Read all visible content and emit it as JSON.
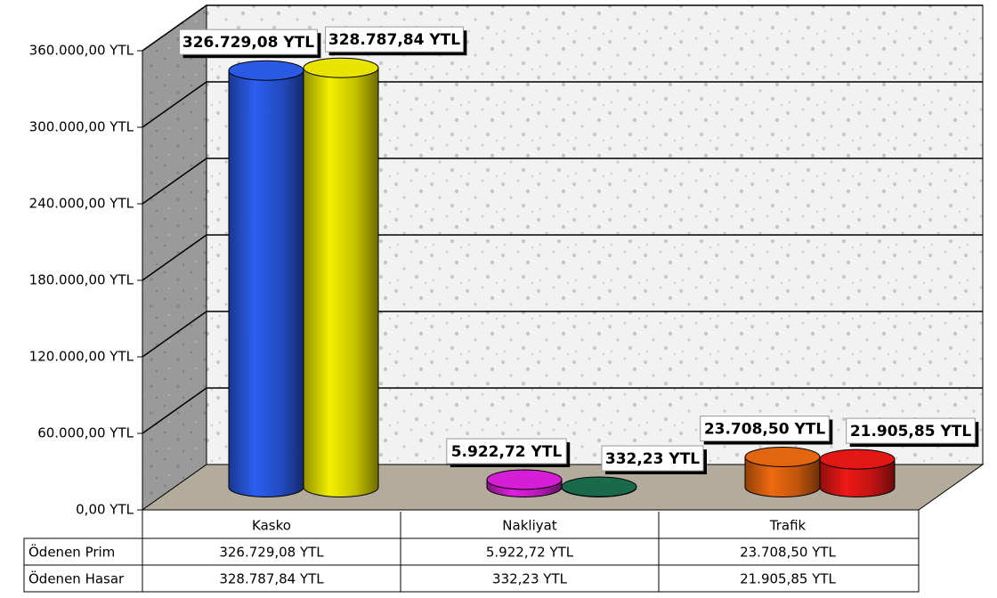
{
  "chart_data": {
    "type": "bar3d",
    "categories": [
      "Kasko",
      "Nakliyat",
      "Trafik"
    ],
    "series": [
      {
        "name": "Ödenen Prim",
        "colors": [
          "#2c5ef0",
          "#e020e0",
          "#f06a10"
        ],
        "values": [
          326729.08,
          5922.72,
          23708.5
        ],
        "value_labels": [
          "326.729,08 YTL",
          "5.922,72 YTL",
          "23.708,50 YTL"
        ]
      },
      {
        "name": "Ödenen Hasar",
        "colors": [
          "#f4f000",
          "#1a7050",
          "#f01818"
        ],
        "values": [
          328787.84,
          332.23,
          21905.85
        ],
        "value_labels": [
          "328.787,84 YTL",
          "332,23 YTL",
          "21.905,85 YTL"
        ]
      }
    ],
    "ylim": [
      0,
      360000
    ],
    "yticks": [
      {
        "value": 0,
        "label": "0,00 YTL"
      },
      {
        "value": 60000,
        "label": "60.000,00 YTL"
      },
      {
        "value": 120000,
        "label": "120.000,00 YTL"
      },
      {
        "value": 180000,
        "label": "180.000,00 YTL"
      },
      {
        "value": 240000,
        "label": "240.000,00 YTL"
      },
      {
        "value": 300000,
        "label": "300.000,00 YTL"
      },
      {
        "value": 360000,
        "label": "360.000,00 YTL"
      }
    ],
    "grid": true
  }
}
